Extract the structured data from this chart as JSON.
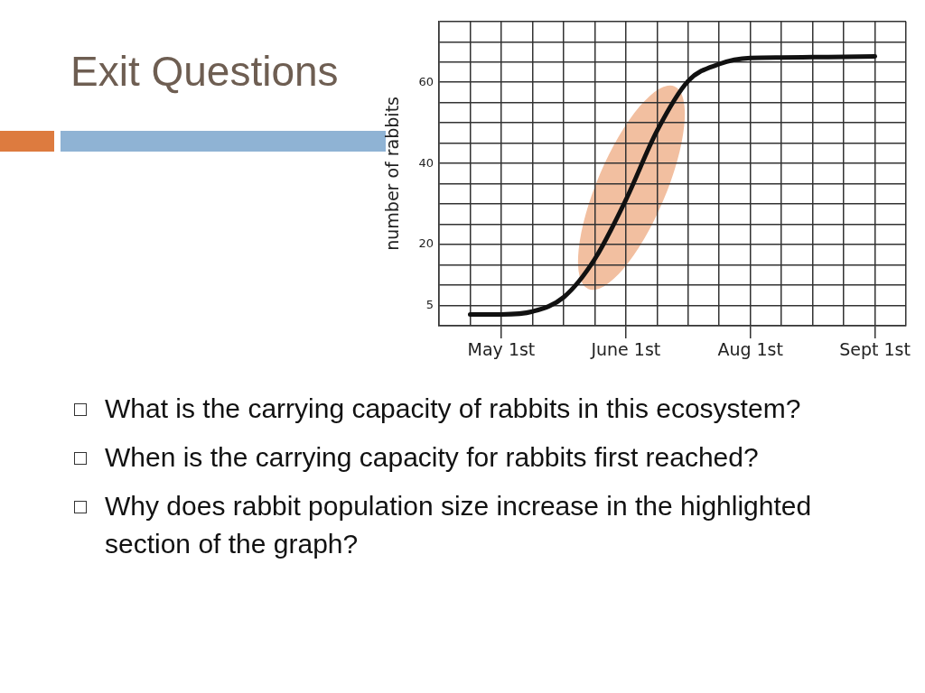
{
  "chart_data": {
    "type": "line",
    "title": "Exit Questions",
    "ylabel": "number of rabbits",
    "categories": [
      null,
      null,
      "May 1st",
      null,
      null,
      null,
      "June 1st",
      null,
      null,
      null,
      "Aug 1st",
      null,
      null,
      null,
      "Sept 1st",
      null
    ],
    "series": [
      {
        "color": "#111111",
        "values": [
          null,
          2.8,
          2.8,
          3.5,
          7,
          16.4,
          31,
          48,
          60.3,
          64.5,
          66,
          66.1,
          66.2,
          66.3,
          66.4,
          null
        ]
      }
    ],
    "ylim": [
      0,
      75
    ],
    "yticks": [
      {
        "value": 0,
        "label": null
      },
      5,
      {
        "value": 10,
        "label": null
      },
      {
        "value": 15,
        "label": null
      },
      20,
      {
        "value": 25,
        "label": null
      },
      {
        "value": 30,
        "label": null
      },
      {
        "value": 35,
        "label": null
      },
      40,
      {
        "value": 45,
        "label": null
      },
      {
        "value": 50,
        "label": null
      },
      {
        "value": 55,
        "label": null
      },
      60,
      {
        "value": 65,
        "label": null
      },
      {
        "value": 70,
        "label": null
      },
      {
        "value": 75,
        "label": null
      }
    ],
    "grid": true,
    "marker": "none",
    "line_style": "solid",
    "annotations": [
      "What is the carrying capacity of rabbits in this ecosystem?",
      "When is the carrying capacity for rabbits first reached?",
      "Why does rabbit population size increase in the highlighted section of the graph?"
    ]
  }
}
